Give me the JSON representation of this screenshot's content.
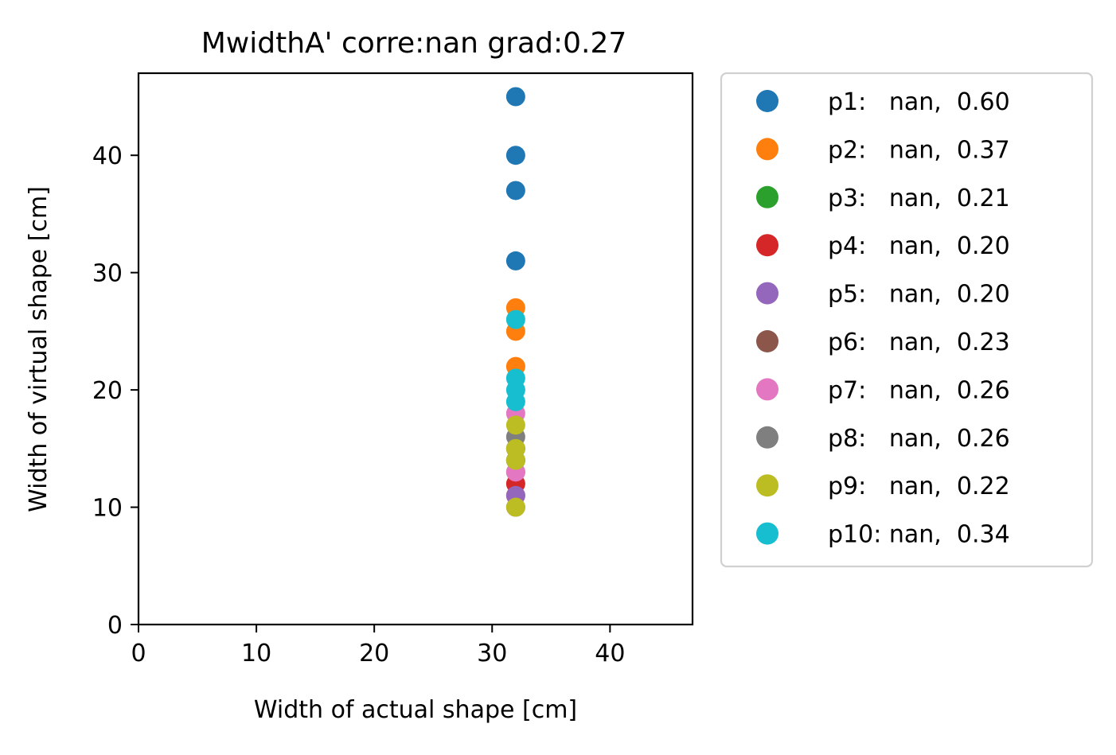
{
  "chart_data": {
    "type": "scatter",
    "title": "MwidthA' corre:nan grad:0.27",
    "xlabel": "Width of actual shape [cm]",
    "ylabel": "Width of virtual shape [cm]",
    "xlim": [
      0,
      47
    ],
    "ylim": [
      0,
      47
    ],
    "xticks": [
      0,
      10,
      20,
      30,
      40
    ],
    "yticks": [
      0,
      10,
      20,
      30,
      40
    ],
    "grid": false,
    "legend_position": "outside-right",
    "series": [
      {
        "name": "p1",
        "color": "#1f77b4",
        "legend_label": "p1:   nan,  0.60",
        "points": [
          [
            32,
            45
          ],
          [
            32,
            40
          ],
          [
            32,
            37
          ],
          [
            32,
            31
          ]
        ]
      },
      {
        "name": "p2",
        "color": "#ff7f0e",
        "legend_label": "p2:   nan,  0.37",
        "points": [
          [
            32,
            27
          ],
          [
            32,
            25
          ],
          [
            32,
            22
          ]
        ]
      },
      {
        "name": "p3",
        "color": "#2ca02c",
        "legend_label": "p3:   nan,  0.21",
        "points": [
          [
            32,
            14
          ],
          [
            32,
            13
          ]
        ]
      },
      {
        "name": "p4",
        "color": "#d62728",
        "legend_label": "p4:   nan,  0.20",
        "points": [
          [
            32,
            12
          ],
          [
            32,
            11
          ]
        ]
      },
      {
        "name": "p5",
        "color": "#9467bd",
        "legend_label": "p5:   nan,  0.20",
        "points": [
          [
            32,
            11
          ],
          [
            32,
            10
          ]
        ]
      },
      {
        "name": "p6",
        "color": "#8c564b",
        "legend_label": "p6:   nan,  0.23",
        "points": [
          [
            32,
            15
          ],
          [
            32,
            14
          ]
        ]
      },
      {
        "name": "p7",
        "color": "#e377c2",
        "legend_label": "p7:   nan,  0.26",
        "points": [
          [
            32,
            18
          ],
          [
            32,
            13
          ]
        ]
      },
      {
        "name": "p8",
        "color": "#7f7f7f",
        "legend_label": "p8:   nan,  0.26",
        "points": [
          [
            32,
            16
          ],
          [
            32,
            15
          ]
        ]
      },
      {
        "name": "p9",
        "color": "#bcbd22",
        "legend_label": "p9:   nan,  0.22",
        "points": [
          [
            32,
            17
          ],
          [
            32,
            15
          ],
          [
            32,
            14
          ],
          [
            32,
            10
          ]
        ]
      },
      {
        "name": "p10",
        "color": "#17becf",
        "legend_label": "p10: nan,  0.34",
        "points": [
          [
            32,
            26
          ],
          [
            32,
            21
          ],
          [
            32,
            20
          ],
          [
            32,
            19
          ]
        ]
      }
    ]
  }
}
